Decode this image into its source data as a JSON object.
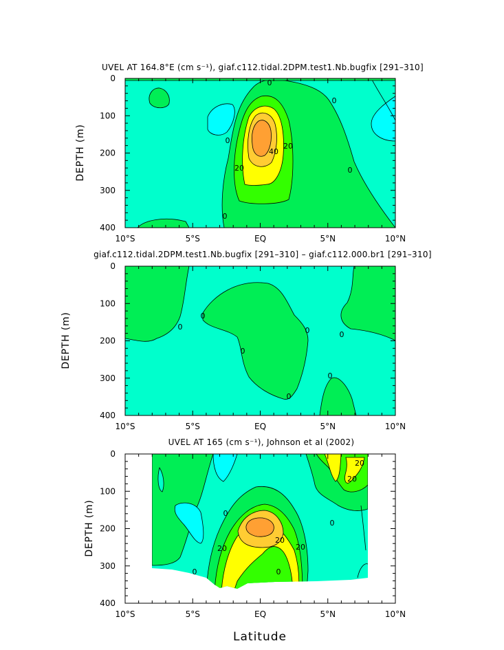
{
  "chart_data": [
    {
      "type": "contour",
      "title": "UVEL AT 164.8°E (cm s⁻¹), giaf.c112.tidal.2DPM.test1.Nb.bugfix [291–310]",
      "ylabel": "DEPTH (m)",
      "xlabel": "",
      "xlim": [
        -10,
        10
      ],
      "ylim": [
        400,
        0
      ],
      "x_ticks": [
        "10°S",
        "5°S",
        "EQ",
        "5°N",
        "10°N"
      ],
      "y_ticks": [
        "0",
        "100",
        "200",
        "300",
        "400"
      ],
      "contour_labels": [
        "0",
        "0",
        "0",
        "0",
        "0",
        "20",
        "20",
        "40"
      ],
      "fill_levels_cm_s": [
        -1000,
        0,
        10,
        20,
        40,
        60
      ],
      "core": {
        "lat": 0.0,
        "depth": 175,
        "max_cm_s": 60
      }
    },
    {
      "type": "contour",
      "title": "giaf.c112.tidal.2DPM.test1.Nb.bugfix [291–310] – giaf.c112.000.br1 [291–310]",
      "ylabel": "DEPTH (m)",
      "xlabel": "",
      "xlim": [
        -10,
        10
      ],
      "ylim": [
        400,
        0
      ],
      "x_ticks": [
        "10°S",
        "5°S",
        "EQ",
        "5°N",
        "10°N"
      ],
      "y_ticks": [
        "0",
        "100",
        "200",
        "300",
        "400"
      ],
      "contour_labels": [
        "0",
        "0",
        "0",
        "0",
        "0",
        "0",
        "0"
      ],
      "fill_levels_cm_s": [
        -1000,
        0,
        10
      ]
    },
    {
      "type": "contour",
      "title": "UVEL AT 165 (cm s⁻¹), Johnson et al (2002)",
      "ylabel": "DEPTH (m)",
      "xlabel": "Latitude",
      "xlim": [
        -10,
        10
      ],
      "ylim": [
        400,
        0
      ],
      "x_ticks": [
        "10°S",
        "5°S",
        "EQ",
        "5°N",
        "10°N"
      ],
      "y_ticks": [
        "0",
        "100",
        "200",
        "300",
        "400"
      ],
      "contour_labels": [
        "0",
        "0",
        "0",
        "0",
        "20",
        "20",
        "20",
        "20",
        "20"
      ],
      "fill_levels_cm_s": [
        -1000,
        -10,
        0,
        10,
        20,
        40,
        60
      ],
      "core": {
        "lat": -0.5,
        "depth": 185,
        "max_cm_s": 60
      },
      "data_extent": {
        "lat": [
          -8,
          8
        ],
        "depth": [
          10,
          340
        ]
      }
    }
  ],
  "colors": {
    "westward": "#00ffff",
    "weak": "#00ffcc",
    "level_0_10": "#00ee55",
    "level_10_20": "#33ff00",
    "level_20_40": "#ffff00",
    "level_40_60": "#ffcc33",
    "level_60_plus": "#ffa033"
  }
}
